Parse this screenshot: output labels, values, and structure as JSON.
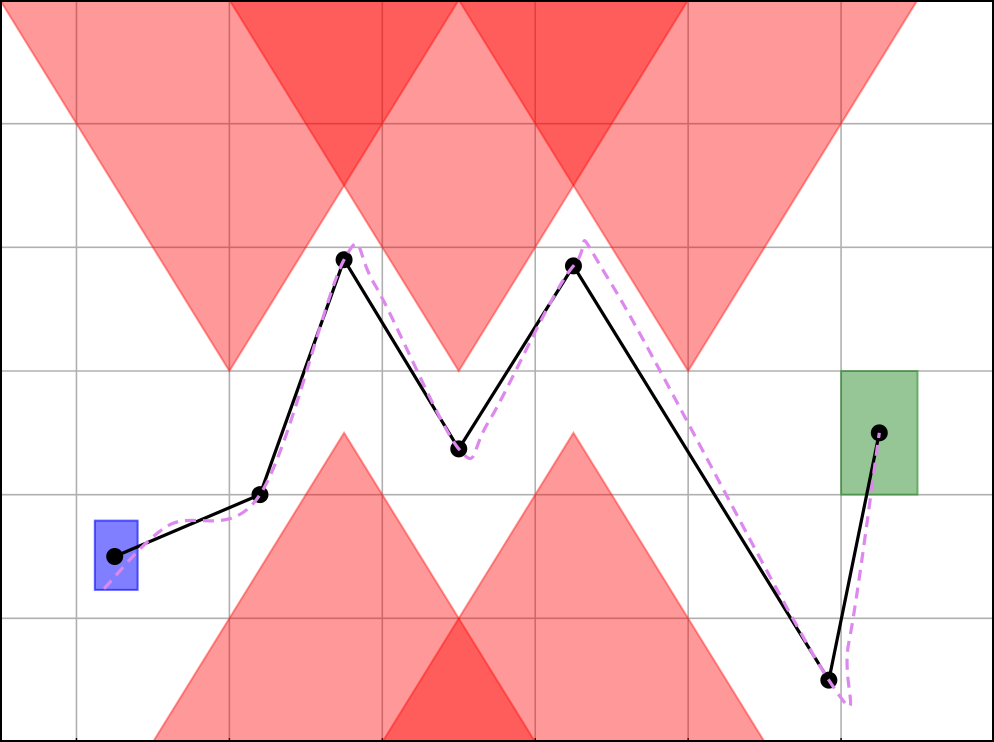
{
  "chart_data": {
    "type": "line",
    "xlim": [
      0,
      6.5
    ],
    "ylim": [
      0,
      6
    ],
    "xticks": [
      0.5,
      1.5,
      2.5,
      3.5,
      4.5,
      5.5
    ],
    "yticks": [
      1,
      2,
      3,
      4,
      5
    ],
    "grid": true,
    "obstacle_color": "#ff0000",
    "obstacles": [
      {
        "x": [
          0,
          1.5,
          3.0
        ],
        "y": [
          6,
          3,
          6
        ]
      },
      {
        "x": [
          1.5,
          3.0,
          4.5
        ],
        "y": [
          6,
          3,
          6
        ]
      },
      {
        "x": [
          3.0,
          4.5,
          6.0
        ],
        "y": [
          6,
          3,
          6
        ]
      },
      {
        "x": [
          1.0,
          2.25,
          3.5
        ],
        "y": [
          0,
          2.5,
          0
        ]
      },
      {
        "x": [
          2.5,
          3.75,
          5.0
        ],
        "y": [
          0,
          2.5,
          0
        ]
      }
    ],
    "regions": [
      {
        "x": [
          0.62,
          0.9
        ],
        "y": [
          1.23,
          1.79
        ],
        "color": "#0000ff"
      },
      {
        "x": [
          5.5,
          6.0
        ],
        "y": [
          2.0,
          3.0
        ],
        "color": "#2e8b2e"
      }
    ],
    "series": [
      {
        "color": "#000000",
        "markers": true,
        "smooth": false,
        "x": [
          0.75,
          1.7,
          2.25,
          3.0,
          3.75,
          5.42,
          5.75
        ],
        "values": [
          1.5,
          2.0,
          3.9,
          2.37,
          3.85,
          0.5,
          2.5
        ]
      },
      {
        "color": "#dd88ee",
        "markers": false,
        "smooth": true,
        "dashed": true,
        "x": [
          0.68,
          1.1,
          1.7,
          2.25,
          2.45,
          3.0,
          3.2,
          3.75,
          4.0,
          5.42,
          5.55,
          5.75
        ],
        "values": [
          1.24,
          1.75,
          2.0,
          3.9,
          3.7,
          2.37,
          2.6,
          3.85,
          3.7,
          0.5,
          0.8,
          2.5
        ]
      }
    ]
  }
}
